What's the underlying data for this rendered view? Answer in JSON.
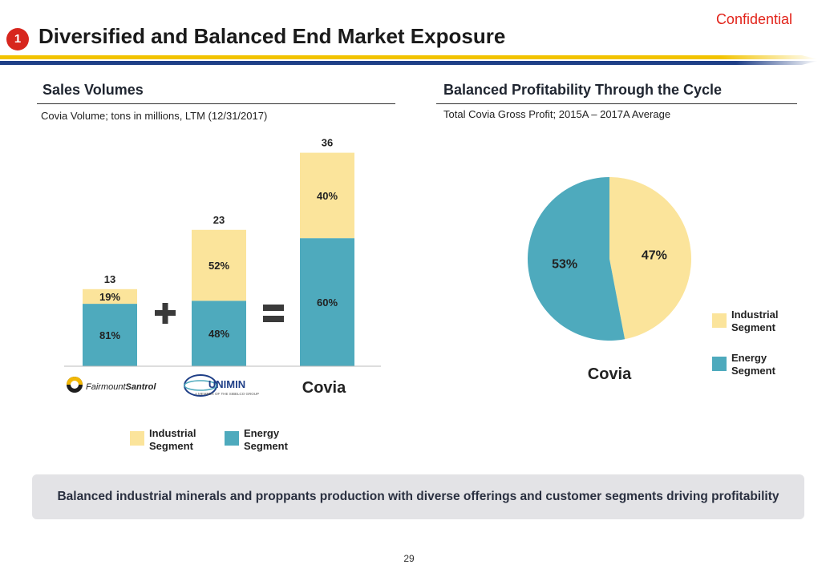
{
  "header": {
    "confidential": "Confidential",
    "section_number": "1",
    "title": "Diversified and Balanced End Market Exposure"
  },
  "colors": {
    "industrial": "#fbe49b",
    "energy": "#4eaabd",
    "accent_red": "#e2231a",
    "stripe_yellow": "#f2c300",
    "stripe_blue": "#1f3f87"
  },
  "left_panel": {
    "title": "Sales Volumes",
    "subtitle": "Covia Volume; tons in millions, LTM (12/31/2017)",
    "operators": {
      "plus": "plus-icon",
      "equals": "equals-icon"
    },
    "logos": {
      "fairmount_prefix": "Fairmount",
      "fairmount_suffix": "Santrol",
      "unimin_name": "UNIMIN",
      "unimin_tagline": "A MEMBER OF THE SIBELCO GROUP",
      "covia_name": "Covia"
    },
    "legend": [
      {
        "label": "Industrial Segment",
        "color": "#fbe49b"
      },
      {
        "label": "Energy Segment",
        "color": "#4eaabd"
      }
    ]
  },
  "right_panel": {
    "title": "Balanced Profitability Through the Cycle",
    "subtitle": "Total Covia Gross Profit; 2015A – 2017A Average",
    "pie_label": "Covia",
    "legend": [
      {
        "label": "Industrial Segment",
        "color": "#fbe49b"
      },
      {
        "label": "Energy Segment",
        "color": "#4eaabd"
      }
    ]
  },
  "chart_data": [
    {
      "type": "bar",
      "stacked": true,
      "title": "Sales Volumes",
      "subtitle": "Covia Volume; tons in millions, LTM (12/31/2017)",
      "categories": [
        "Fairmount Santrol",
        "Unimin",
        "Covia"
      ],
      "totals": [
        13,
        23,
        36
      ],
      "total_labels": [
        "13",
        "23",
        "36"
      ],
      "series": [
        {
          "name": "Energy Segment",
          "color": "#4eaabd",
          "shares": [
            81,
            48,
            60
          ],
          "labels": [
            "81%",
            "48%",
            "60%"
          ]
        },
        {
          "name": "Industrial Segment",
          "color": "#fbe49b",
          "shares": [
            19,
            52,
            40
          ],
          "labels": [
            "19%",
            "52%",
            "40%"
          ]
        }
      ],
      "ylim": [
        0,
        40
      ]
    },
    {
      "type": "pie",
      "title": "Balanced Profitability Through the Cycle",
      "subtitle": "Total Covia Gross Profit; 2015A – 2017A Average",
      "label": "Covia",
      "slices": [
        {
          "name": "Industrial Segment",
          "value": 47,
          "label": "47%",
          "color": "#fbe49b"
        },
        {
          "name": "Energy Segment",
          "value": 53,
          "label": "53%",
          "color": "#4eaabd"
        }
      ]
    }
  ],
  "banner": {
    "text": "Balanced industrial minerals and proppants production with diverse offerings and customer segments driving profitability"
  },
  "footer": {
    "page_number": "29"
  }
}
